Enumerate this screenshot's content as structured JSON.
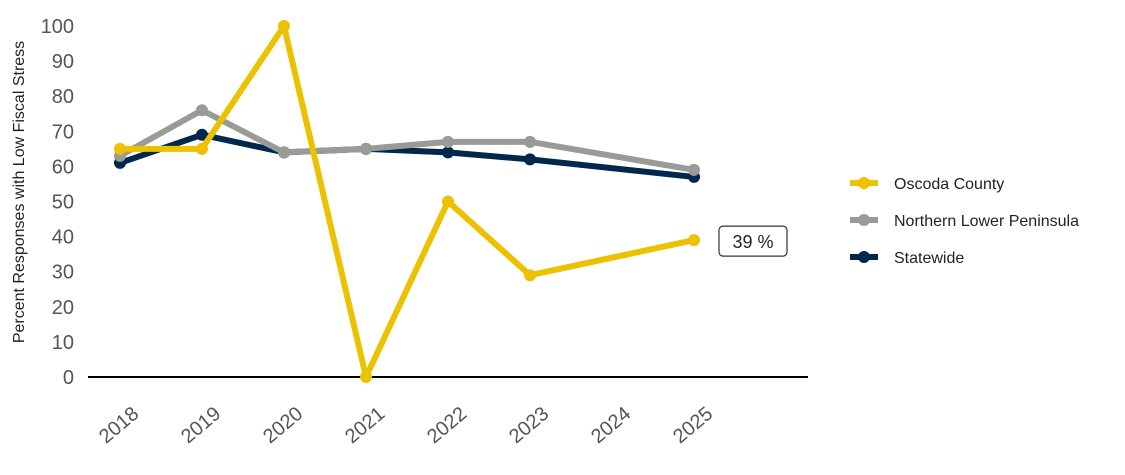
{
  "chart_data": {
    "type": "line",
    "title": "",
    "xlabel": "",
    "ylabel": "Percent Responses with Low Fiscal Stress",
    "x": [
      "2018",
      "2019",
      "2020",
      "2021",
      "2022",
      "2023",
      "2024",
      "2025"
    ],
    "ylim": [
      0,
      100
    ],
    "yticks": [
      0,
      10,
      20,
      30,
      40,
      50,
      60,
      70,
      80,
      90,
      100
    ],
    "grid": false,
    "legend_position": "right",
    "series": [
      {
        "name": "Oscoda County",
        "color": "#EBC100",
        "values": [
          65,
          65,
          100,
          0,
          50,
          29,
          null,
          39
        ]
      },
      {
        "name": "Northern Lower Peninsula",
        "color": "#999B96",
        "values": [
          63,
          76,
          64,
          65,
          67,
          67,
          null,
          59
        ]
      },
      {
        "name": "Statewide",
        "color": "#00274C",
        "values": [
          61,
          69,
          64,
          65,
          64,
          62,
          null,
          57
        ]
      }
    ],
    "annotations": [
      {
        "series": "Oscoda County",
        "x": "2025",
        "text": "39 %"
      }
    ]
  }
}
